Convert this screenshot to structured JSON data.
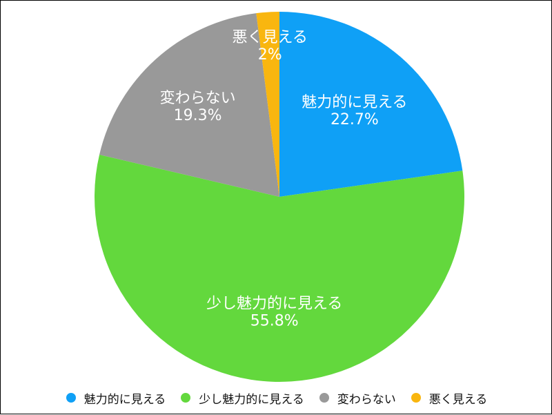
{
  "chart_data": {
    "type": "pie",
    "title": "",
    "start_angle_deg": 0,
    "direction": "clockwise",
    "legend_position": "bottom",
    "slices": [
      {
        "label": "魅力的に見える",
        "value": 22.7,
        "value_label": "22.7%",
        "color": "#0FA0F6"
      },
      {
        "label": "少し魅力的に見える",
        "value": 55.8,
        "value_label": "55.8%",
        "color": "#63D83D"
      },
      {
        "label": "変わらない",
        "value": 19.3,
        "value_label": "19.3%",
        "color": "#999999"
      },
      {
        "label": "悪く見える",
        "value": 2.0,
        "value_label": "2%",
        "color": "#F9B60F"
      }
    ]
  }
}
